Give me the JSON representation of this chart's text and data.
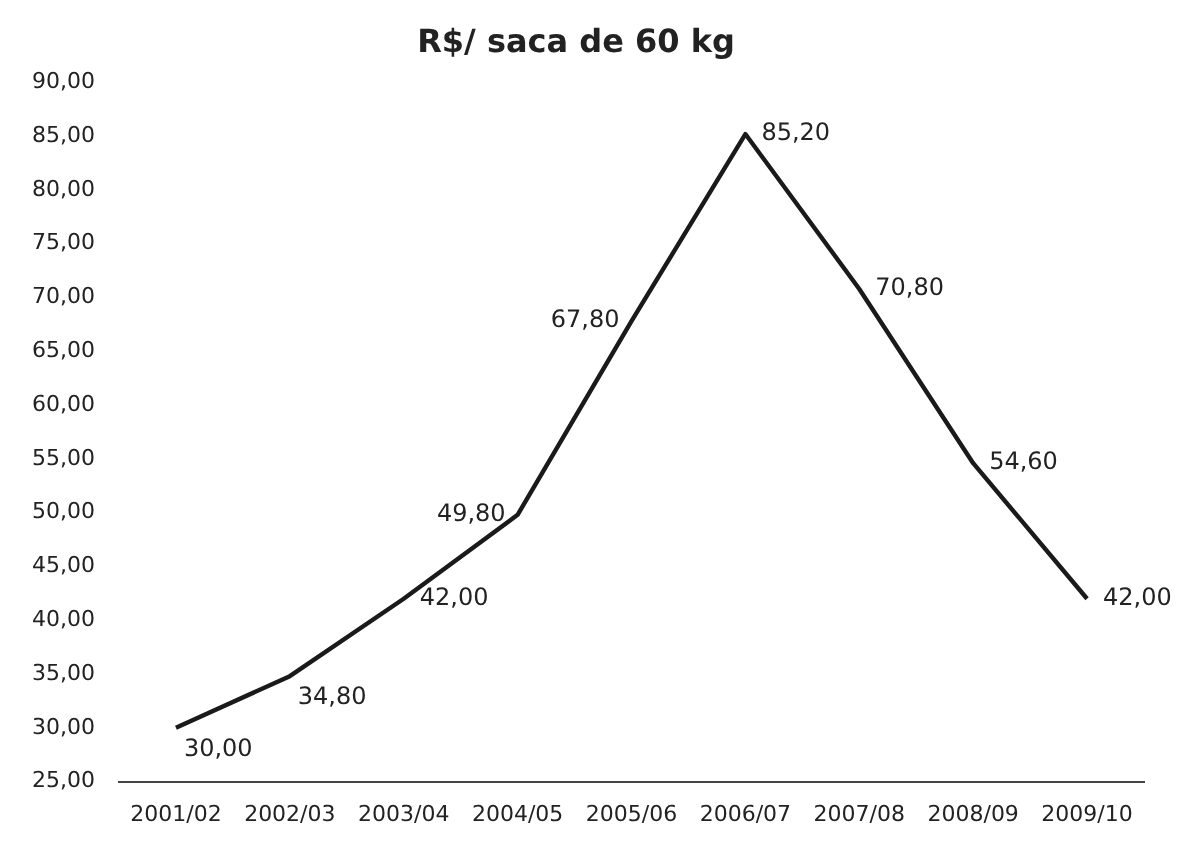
{
  "chart_data": {
    "type": "line",
    "title": "R$/ saca de 60 kg",
    "categories": [
      "2001/02",
      "2002/03",
      "2003/04",
      "2004/05",
      "2005/06",
      "2006/07",
      "2007/08",
      "2008/09",
      "2009/10"
    ],
    "series": [
      {
        "color": "#1a1a1a",
        "values": [
          30.0,
          34.8,
          42.0,
          49.8,
          67.8,
          85.2,
          70.8,
          54.6,
          42.0
        ],
        "value_labels": [
          "30,00",
          "34,80",
          "42,00",
          "49,80",
          "67,80",
          "85,20",
          "70,80",
          "54,60",
          "42,00"
        ]
      }
    ],
    "ylim": [
      25,
      90
    ],
    "yticks": [
      {
        "value": 25,
        "label": "25,00"
      },
      {
        "value": 30,
        "label": "30,00"
      },
      {
        "value": 35,
        "label": "35,00"
      },
      {
        "value": 40,
        "label": "40,00"
      },
      {
        "value": 45,
        "label": "45,00"
      },
      {
        "value": 50,
        "label": "50,00"
      },
      {
        "value": 55,
        "label": "55,00"
      },
      {
        "value": 60,
        "label": "60,00"
      },
      {
        "value": 65,
        "label": "65,00"
      },
      {
        "value": 70,
        "label": "70,00"
      },
      {
        "value": 75,
        "label": "75,00"
      },
      {
        "value": 80,
        "label": "80,00"
      },
      {
        "value": 85,
        "label": "85,00"
      },
      {
        "value": 90,
        "label": "90,00"
      }
    ],
    "grid": false,
    "legend": false,
    "marker": "none",
    "line_style": "solid"
  }
}
